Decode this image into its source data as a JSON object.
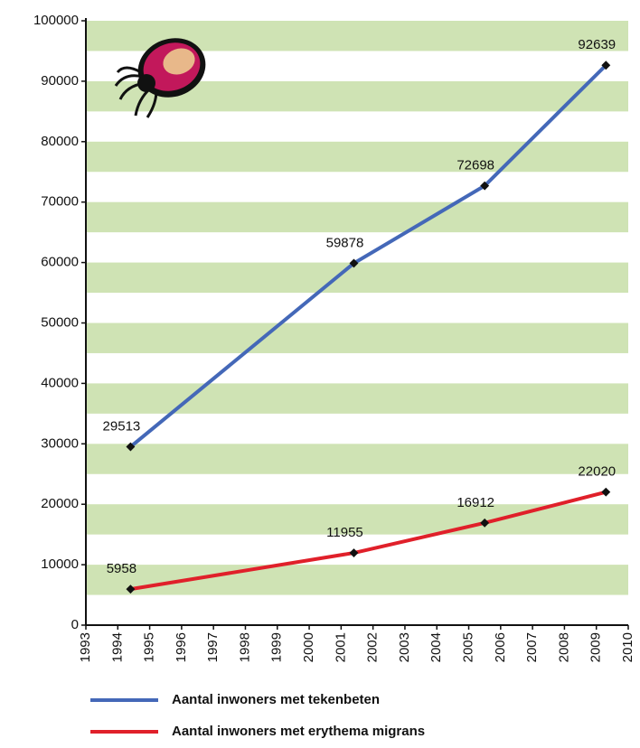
{
  "chart_data": {
    "type": "line",
    "x": [
      1994.4,
      2001.4,
      2005.5,
      2009.3
    ],
    "series": [
      {
        "name": "Aantal inwoners met tekenbeten",
        "color": "#4468b8",
        "values": [
          29513,
          59878,
          72698,
          92639
        ]
      },
      {
        "name": "Aantal inwoners met erythema migrans",
        "color": "#e0202a",
        "values": [
          5958,
          11955,
          16912,
          22020
        ]
      }
    ],
    "xlim": [
      1993,
      2010
    ],
    "xticks": [
      1993,
      1994,
      1995,
      1996,
      1997,
      1998,
      1999,
      2000,
      2001,
      2002,
      2003,
      2004,
      2005,
      2006,
      2007,
      2008,
      2009,
      2010
    ],
    "ylim": [
      0,
      100000
    ],
    "yticks": [
      0,
      10000,
      20000,
      30000,
      40000,
      50000,
      60000,
      70000,
      80000,
      90000,
      100000
    ],
    "grid": true,
    "grid_color": "#cfe3b4"
  }
}
